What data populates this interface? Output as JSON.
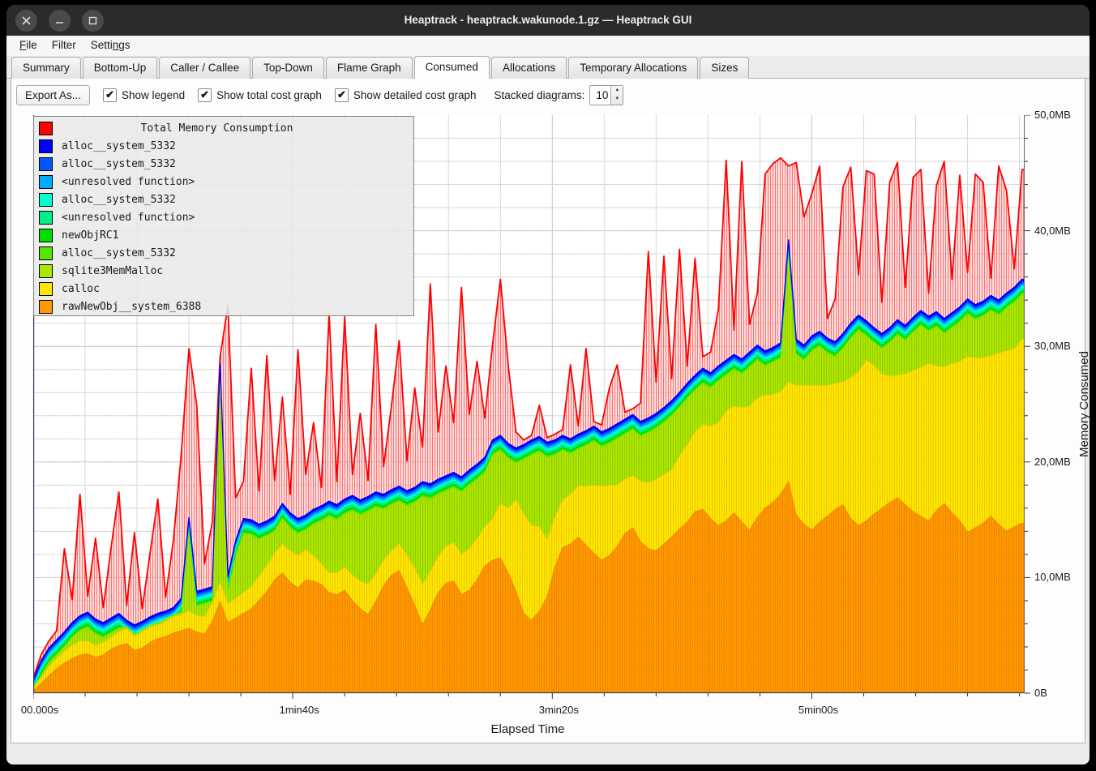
{
  "window": {
    "title": "Heaptrack - heaptrack.wakunode.1.gz — Heaptrack GUI",
    "controls": [
      "close",
      "minimize",
      "maximize"
    ]
  },
  "menu": {
    "items": [
      {
        "label": "File",
        "accel_index": 0
      },
      {
        "label": "Filter",
        "accel_index": -1
      },
      {
        "label": "Settings",
        "accel_index": 5
      }
    ]
  },
  "tabs": {
    "active_index": 5,
    "items": [
      "Summary",
      "Bottom-Up",
      "Caller / Callee",
      "Top-Down",
      "Flame Graph",
      "Consumed",
      "Allocations",
      "Temporary Allocations",
      "Sizes"
    ]
  },
  "toolbar": {
    "export_label": "Export As...",
    "checkboxes": [
      {
        "label": "Show legend",
        "checked": true
      },
      {
        "label": "Show total cost graph",
        "checked": true
      },
      {
        "label": "Show detailed cost graph",
        "checked": true
      }
    ],
    "stacked_label": "Stacked diagrams:",
    "stacked_value": "10",
    "check_glyph": "✔"
  },
  "legend": {
    "title": {
      "label": "Total Memory Consumption",
      "color": "#FF0000"
    },
    "items": [
      {
        "label": "alloc__system_5332",
        "color": "#0000FF"
      },
      {
        "label": "alloc__system_5332",
        "color": "#0055FF"
      },
      {
        "label": "<unresolved function>",
        "color": "#00AAFF"
      },
      {
        "label": "alloc__system_5332",
        "color": "#00FFCC"
      },
      {
        "label": "<unresolved function>",
        "color": "#00EE88"
      },
      {
        "label": "newObjRC1",
        "color": "#00DD00"
      },
      {
        "label": "alloc__system_5332",
        "color": "#55E600"
      },
      {
        "label": "sqlite3MemMalloc",
        "color": "#AAE600"
      },
      {
        "label": "calloc",
        "color": "#FFE600"
      },
      {
        "label": "rawNewObj__system_6388",
        "color": "#FF9900"
      }
    ]
  },
  "chart_data": {
    "type": "area",
    "title": "Total Memory Consumption",
    "xlabel": "Elapsed Time",
    "ylabel": "Memory Consumed",
    "xlim_s": [
      0,
      382
    ],
    "ylim_mb": [
      0,
      50
    ],
    "x_step_s": 3,
    "x_minor_step_s": 20,
    "y_minor_step_mb": 2,
    "x_ticks": [
      {
        "t": 0,
        "label": "00.000s"
      },
      {
        "t": 100,
        "label": "1min40s"
      },
      {
        "t": 200,
        "label": "3min20s"
      },
      {
        "t": 300,
        "label": "5min00s"
      }
    ],
    "y_ticks": [
      {
        "mb": 0,
        "label": "0B"
      },
      {
        "mb": 10,
        "label": "10,0MB"
      },
      {
        "mb": 20,
        "label": "20,0MB"
      },
      {
        "mb": 30,
        "label": "30,0MB"
      },
      {
        "mb": 40,
        "label": "40,0MB"
      },
      {
        "mb": 50,
        "label": "50,0MB"
      }
    ],
    "grid": {
      "under_minor": "#DEDEDE",
      "under_major": "#CCCCCC",
      "overlay": "rgba(120,120,120,0.18)"
    },
    "total_layer": {
      "name": "Total Memory Consumption",
      "stroke": "#FF0000",
      "fill_bg": "rgba(255,187,187,0.5)",
      "stripe": "rgba(255,40,40,0.6)"
    },
    "thin_layers": [
      {
        "name": "alloc__system_5332",
        "color": "#0000FF",
        "offset_mb": 0
      },
      {
        "name": "alloc__system_5332",
        "color": "#0055FF",
        "offset_mb": 0.18
      },
      {
        "name": "<unresolved function>",
        "color": "#00AAFF",
        "offset_mb": 0.36
      },
      {
        "name": "alloc__system_5332",
        "color": "#00FFCC",
        "offset_mb": 0.55
      },
      {
        "name": "<unresolved function>",
        "color": "#00EE88",
        "offset_mb": 0.75
      },
      {
        "name": "newObjRC1",
        "color": "#00DD00",
        "offset_mb": 0.98
      },
      {
        "name": "alloc__system_5332",
        "color": "#55E600",
        "offset_mb": 1.15
      }
    ],
    "sqlite_layer": {
      "name": "sqlite3MemMalloc",
      "color": "#AAE600",
      "stripe": "#98CC00",
      "offset_below_top_mb": 1.3,
      "min_thickness_mb": 0.2
    },
    "calloc_layer": {
      "name": "calloc",
      "color": "#FFE600",
      "stripe": "#EDCB00",
      "edge": "#EDD000"
    },
    "raw_layer": {
      "name": "rawNewObj__system_6388",
      "color": "#FF9900",
      "stripe": "#EF8700",
      "edge": "#F08800"
    },
    "series": {
      "total_mb": [
        1.3,
        3.3,
        4.5,
        5.4,
        12.5,
        8.1,
        17.2,
        8.4,
        13.4,
        7.4,
        12.6,
        17.4,
        7.6,
        13.9,
        7.3,
        12.1,
        16.8,
        8.3,
        13.2,
        20.6,
        29.8,
        24.9,
        11.2,
        14.8,
        29.1,
        33.5,
        16.9,
        18.3,
        28.1,
        17.5,
        29.2,
        18.4,
        25.6,
        17.2,
        29.7,
        18.9,
        23.4,
        17.8,
        32.8,
        18.3,
        32.6,
        18.9,
        24.2,
        18.4,
        31.9,
        19.6,
        24.8,
        30.5,
        20.1,
        26.4,
        21.3,
        35.4,
        22.6,
        28.3,
        23.4,
        35.1,
        24.1,
        28.7,
        23.8,
        30.2,
        35.8,
        28.4,
        22.6,
        21.9,
        22.3,
        24.9,
        22.1,
        22.4,
        22.8,
        28.4,
        23.1,
        29.8,
        23.5,
        23.2,
        26.4,
        28.4,
        24.3,
        24.6,
        25.1,
        38.2,
        26.9,
        37.8,
        27.2,
        38.4,
        28.3,
        37.6,
        29.1,
        29.5,
        33.2,
        46.1,
        31.4,
        46.0,
        31.9,
        34.6,
        44.9,
        45.8,
        46.3,
        45.6,
        45.9,
        41.2,
        43.2,
        45.6,
        32.4,
        34.1,
        43.8,
        45.5,
        36.2,
        45.2,
        44.9,
        33.8,
        44.2,
        45.9,
        35.1,
        44.6,
        45.3,
        34.6,
        43.9,
        46.0,
        35.8,
        44.8,
        36.4,
        44.9,
        44.2,
        35.9,
        45.6,
        43.5,
        36.7,
        45.3
      ],
      "stack_top_mb": [
        1.2,
        2.8,
        3.9,
        4.6,
        5.3,
        6.1,
        6.7,
        7.0,
        6.4,
        6.1,
        6.5,
        6.9,
        6.3,
        5.9,
        6.2,
        6.6,
        6.9,
        7.1,
        7.4,
        8.2,
        15.2,
        8.8,
        9.0,
        9.2,
        28.5,
        10.1,
        13.2,
        15.1,
        15.0,
        14.6,
        14.9,
        15.3,
        16.4,
        15.6,
        15.1,
        15.4,
        15.9,
        16.2,
        16.6,
        16.3,
        16.8,
        17.1,
        16.7,
        17.0,
        17.4,
        17.2,
        17.6,
        17.9,
        17.5,
        17.8,
        18.3,
        18.1,
        18.5,
        18.8,
        19.1,
        18.7,
        19.3,
        19.8,
        20.4,
        21.9,
        22.3,
        21.6,
        21.2,
        21.5,
        21.9,
        22.2,
        21.7,
        21.9,
        22.3,
        22.0,
        22.4,
        22.7,
        23.1,
        22.6,
        22.9,
        23.3,
        23.7,
        24.1,
        23.5,
        23.8,
        24.2,
        24.7,
        25.3,
        26.0,
        26.8,
        27.5,
        28.1,
        27.7,
        28.3,
        28.8,
        29.3,
        28.9,
        29.5,
        30.1,
        29.6,
        29.9,
        30.3,
        39.2,
        30.6,
        30.1,
        30.9,
        31.3,
        30.7,
        30.4,
        31.1,
        32.0,
        32.7,
        32.2,
        31.6,
        31.1,
        31.6,
        32.3,
        31.8,
        32.5,
        33.1,
        32.6,
        33.0,
        32.4,
        32.9,
        33.4,
        34.1,
        33.6,
        33.9,
        34.4,
        34.0,
        34.6,
        35.1,
        35.8
      ],
      "calloc_thickness_mb": [
        0.2,
        0.5,
        0.8,
        0.9,
        1.0,
        1.1,
        1.2,
        1.1,
        1.0,
        1.1,
        1.0,
        1.2,
        1.3,
        1.2,
        1.4,
        1.3,
        1.2,
        1.3,
        1.4,
        1.4,
        1.5,
        1.4,
        1.5,
        1.6,
        1.7,
        1.6,
        1.7,
        1.8,
        1.9,
        2.1,
        2.2,
        2.3,
        2.5,
        2.7,
        2.8,
        2.6,
        2.2,
        1.8,
        1.7,
        1.9,
        2.0,
        2.2,
        2.4,
        2.6,
        2.4,
        2.2,
        2.1,
        2.3,
        2.8,
        3.2,
        3.5,
        3.3,
        3.1,
        3.2,
        3.3,
        3.5,
        3.6,
        3.5,
        3.4,
        3.6,
        4.7,
        5.6,
        7.9,
        8.6,
        8.2,
        7.3,
        5.0,
        4.3,
        4.1,
        4.3,
        4.4,
        5.1,
        5.9,
        6.4,
        6.1,
        5.3,
        4.7,
        4.5,
        5.2,
        5.7,
        6.2,
        6.0,
        5.8,
        6.3,
        6.7,
        6.9,
        7.3,
        8.0,
        8.9,
        9.5,
        9.2,
        9.9,
        10.7,
        10.3,
        9.8,
        9.3,
        8.9,
        8.6,
        11.2,
        12.0,
        12.5,
        11.8,
        11.3,
        10.9,
        10.6,
        12.2,
        13.3,
        13.9,
        12.8,
        11.6,
        10.9,
        10.6,
        11.3,
        12.2,
        12.9,
        13.6,
        12.5,
        11.8,
        12.9,
        13.8,
        15.2,
        14.7,
        14.3,
        13.9,
        14.8,
        15.6,
        15.4,
        15.9
      ],
      "rawNewObj_mb": [
        0.2,
        0.8,
        1.5,
        2.1,
        2.6,
        3.0,
        3.3,
        3.4,
        3.1,
        3.3,
        3.8,
        4.1,
        4.3,
        3.7,
        3.9,
        4.4,
        4.7,
        4.9,
        5.2,
        5.4,
        5.6,
        5.3,
        5.1,
        6.2,
        7.9,
        6.1,
        6.5,
        6.9,
        7.3,
        8.0,
        8.8,
        9.8,
        10.4,
        9.6,
        9.1,
        9.8,
        9.7,
        9.4,
        8.7,
        8.5,
        8.9,
        8.0,
        7.3,
        6.8,
        7.9,
        9.3,
        10.2,
        10.6,
        9.1,
        7.6,
        5.9,
        7.2,
        8.7,
        9.5,
        9.7,
        8.5,
        8.9,
        9.8,
        11.0,
        11.5,
        11.7,
        10.4,
        8.8,
        6.9,
        6.3,
        7.1,
        8.3,
        10.9,
        12.6,
        12.9,
        13.5,
        12.8,
        12.1,
        11.5,
        11.9,
        12.7,
        13.8,
        14.3,
        13.1,
        12.5,
        12.3,
        12.9,
        13.5,
        14.2,
        14.8,
        15.7,
        15.9,
        15.1,
        14.5,
        14.9,
        15.6,
        14.8,
        14.1,
        15.2,
        16.0,
        16.5,
        17.2,
        18.3,
        15.4,
        14.6,
        14.1,
        14.8,
        15.3,
        15.9,
        16.3,
        15.1,
        14.5,
        14.9,
        15.5,
        16.0,
        16.5,
        16.9,
        16.3,
        15.7,
        15.3,
        14.9,
        15.8,
        16.4,
        15.6,
        14.9,
        13.9,
        14.3,
        14.7,
        15.3,
        14.6,
        14.0,
        14.4,
        14.7
      ]
    }
  }
}
